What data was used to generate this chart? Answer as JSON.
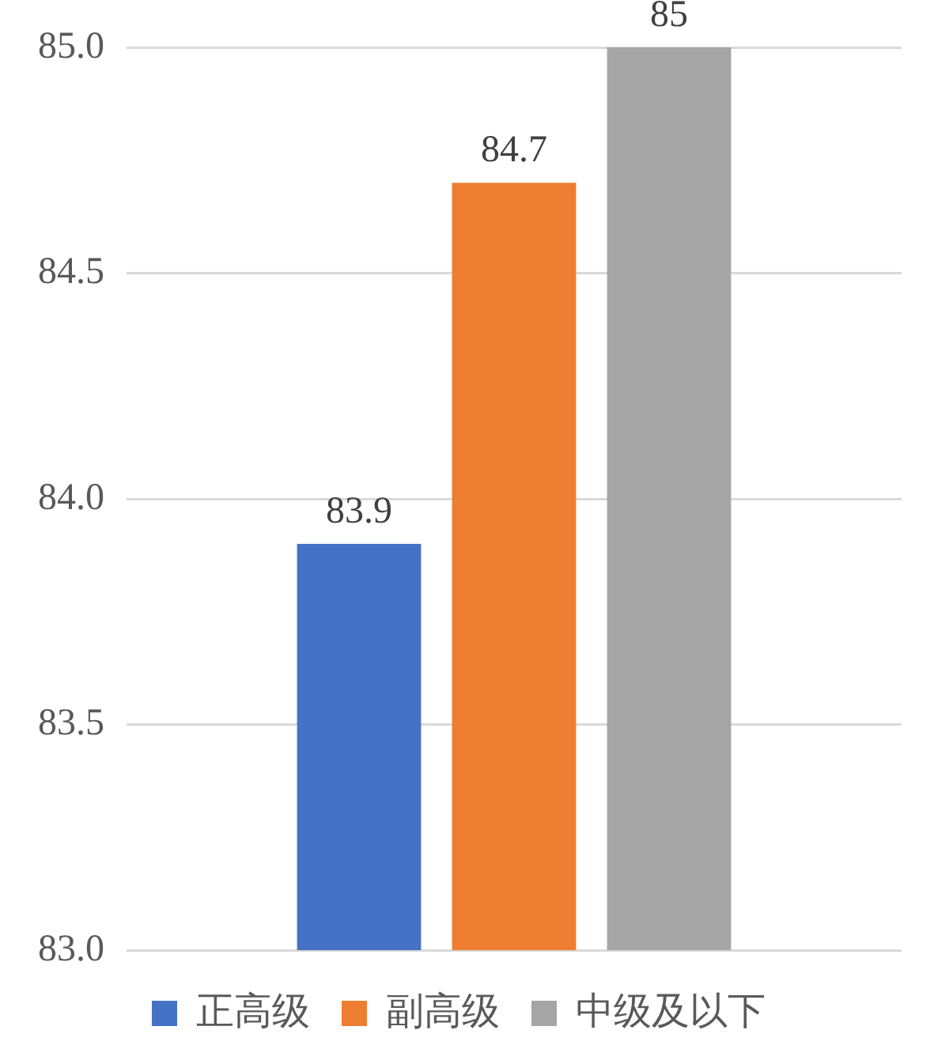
{
  "chart_data": {
    "type": "bar",
    "categories": [
      null
    ],
    "series": [
      {
        "name": "正高级",
        "color": "#4472c4",
        "values": [
          83.9
        ]
      },
      {
        "name": "副高级",
        "color": "#ed7d31",
        "values": [
          84.7
        ]
      },
      {
        "name": "中级及以下",
        "color": "#a5a5a5",
        "values": [
          85
        ]
      }
    ],
    "ylim": [
      83,
      85
    ],
    "yticks": [
      {
        "value": 83,
        "label": "83.0"
      },
      {
        "value": 83.5,
        "label": "83.5"
      },
      {
        "value": 84,
        "label": "84.0"
      },
      {
        "value": 84.5,
        "label": "84.5"
      },
      {
        "value": 85,
        "label": "85.0"
      }
    ],
    "grid": "y",
    "legend": "bottom",
    "data_labels": true
  }
}
